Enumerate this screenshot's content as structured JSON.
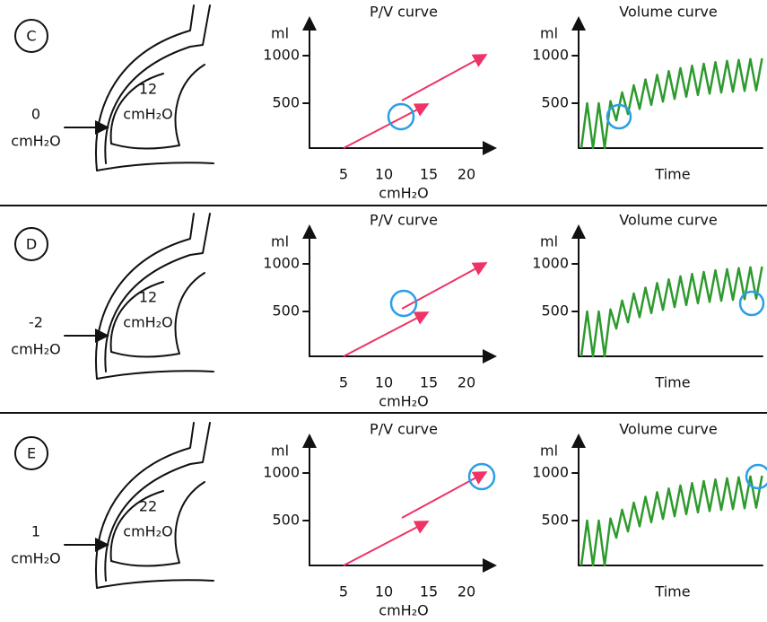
{
  "panels": [
    {
      "label": "C",
      "outside_pressure": "0",
      "outside_unit": "cmH₂O",
      "alveolar_pressure": "12",
      "alveolar_unit": "cmH₂O",
      "pv_curve": {
        "title": "P/V curve",
        "y_label": "ml",
        "y_ticks": [
          "500",
          "1000"
        ],
        "x_ticks": [
          "5",
          "10",
          "15",
          "20"
        ],
        "x_label": "cmH₂O"
      },
      "volume_curve": {
        "title": "Volume curve",
        "y_label": "ml",
        "y_ticks": [
          "500",
          "1000"
        ],
        "x_label": "Time"
      }
    },
    {
      "label": "D",
      "outside_pressure": "-2",
      "outside_unit": "cmH₂O",
      "alveolar_pressure": "12",
      "alveolar_unit": "cmH₂O",
      "pv_curve": {
        "title": "P/V curve",
        "y_label": "ml",
        "y_ticks": [
          "500",
          "1000"
        ],
        "x_ticks": [
          "5",
          "10",
          "15",
          "20"
        ],
        "x_label": "cmH₂O"
      },
      "volume_curve": {
        "title": "Volume curve",
        "y_label": "ml",
        "y_ticks": [
          "500",
          "1000"
        ],
        "x_label": "Time"
      }
    },
    {
      "label": "E",
      "outside_pressure": "1",
      "outside_unit": "cmH₂O",
      "alveolar_pressure": "22",
      "alveolar_unit": "cmH₂O",
      "pv_curve": {
        "title": "P/V curve",
        "y_label": "ml",
        "y_ticks": [
          "500",
          "1000"
        ],
        "x_ticks": [
          "5",
          "10",
          "15",
          "20"
        ],
        "x_label": "cmH₂O"
      },
      "volume_curve": {
        "title": "Volume curve",
        "y_label": "ml",
        "y_ticks": [
          "500",
          "1000"
        ],
        "x_label": "Time"
      }
    }
  ]
}
